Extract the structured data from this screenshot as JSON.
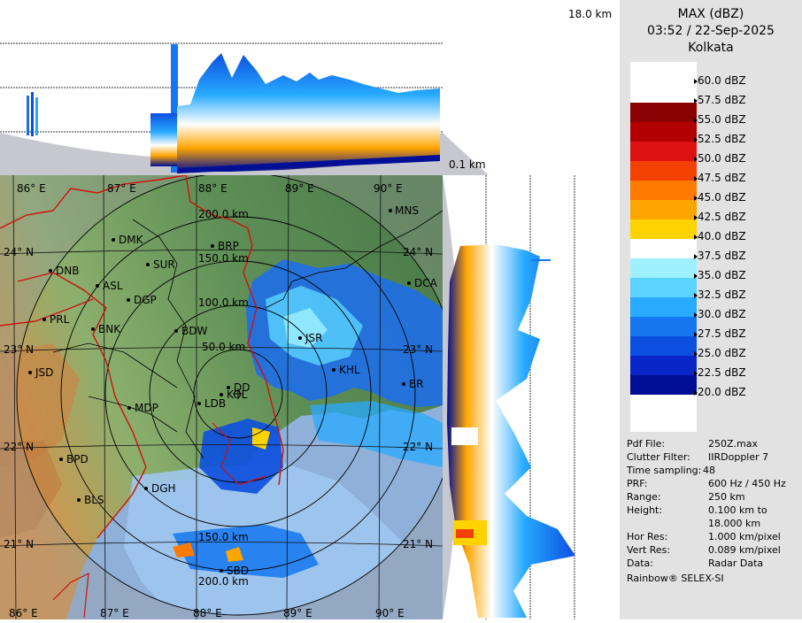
{
  "header": {
    "title": "MAX (dBZ)",
    "datetime": "03:52 / 22-Sep-2025",
    "station": "Kolkata"
  },
  "height_labels": {
    "top": "18.0 km",
    "bottom": "0.1 km"
  },
  "legend": {
    "unit": "dBZ",
    "entries": [
      {
        "label": "60.0 dBZ",
        "color": "#ffffff"
      },
      {
        "label": "57.5 dBZ",
        "color": "#8b0000"
      },
      {
        "label": "55.0 dBZ",
        "color": "#b20000"
      },
      {
        "label": "52.5 dBZ",
        "color": "#dd1111"
      },
      {
        "label": "50.0 dBZ",
        "color": "#f24100"
      },
      {
        "label": "47.5 dBZ",
        "color": "#ff7a00"
      },
      {
        "label": "45.0 dBZ",
        "color": "#ffa500"
      },
      {
        "label": "42.5 dBZ",
        "color": "#ffd300"
      },
      {
        "label": "40.0 dBZ",
        "color": "#fff7a8"
      },
      {
        "label": "37.5 dBZ",
        "color": "#ffffff"
      },
      {
        "label": "35.0 dBZ",
        "color": "#9ff0ff"
      },
      {
        "label": "32.5 dBZ",
        "color": "#5ad3ff"
      },
      {
        "label": "30.0 dBZ",
        "color": "#27aaff"
      },
      {
        "label": "27.5 dBZ",
        "color": "#1477f0"
      },
      {
        "label": "25.0 dBZ",
        "color": "#0b4fe0"
      },
      {
        "label": "22.5 dBZ",
        "color": "#0826c8"
      },
      {
        "label": "20.0 dBZ",
        "color": "#000f96"
      }
    ]
  },
  "info": [
    {
      "key": "Pdf File:",
      "value": "250Z.max"
    },
    {
      "key": "Clutter Filter:",
      "value": "IIRDoppler 7"
    },
    {
      "key": "Time sampling:",
      "value": "48"
    },
    {
      "key": "PRF:",
      "value": "600 Hz / 450 Hz"
    },
    {
      "key": "Range:",
      "value": "250 km"
    },
    {
      "key": "Height:",
      "value": "0.100 km to"
    },
    {
      "key": "",
      "value": "18.000 km"
    },
    {
      "key": "Hor Res:",
      "value": "1.000 km/pixel"
    },
    {
      "key": "Vert Res:",
      "value": "0.089 km/pixel"
    },
    {
      "key": "Data:",
      "value": "Radar Data"
    }
  ],
  "vendor": "Rainbow® SELEX-SI",
  "map": {
    "lon_labels": [
      "86° E",
      "87° E",
      "88° E",
      "89° E",
      "90° E"
    ],
    "lat_labels_left": [
      "24° N",
      "23° N",
      "22° N",
      "21° N"
    ],
    "lat_labels_right": [
      "24° N",
      "23° N",
      "22° N",
      "21° N"
    ],
    "range_labels": [
      "200.0 km",
      "150.0 km",
      "100.0 km",
      "50.0 km",
      "150.0 km",
      "200.0 km"
    ],
    "cities": [
      "MNS",
      "DMK",
      "BRP",
      "SUR",
      "DNB",
      "ASL",
      "DCA",
      "DGP",
      "PRL",
      "BNK",
      "BDW",
      "JSR",
      "KHL",
      "JSD",
      "DD",
      "KOL",
      "LDB",
      "MDP",
      "BPD",
      "DGH",
      "BLS",
      "SBD",
      "BR"
    ]
  }
}
